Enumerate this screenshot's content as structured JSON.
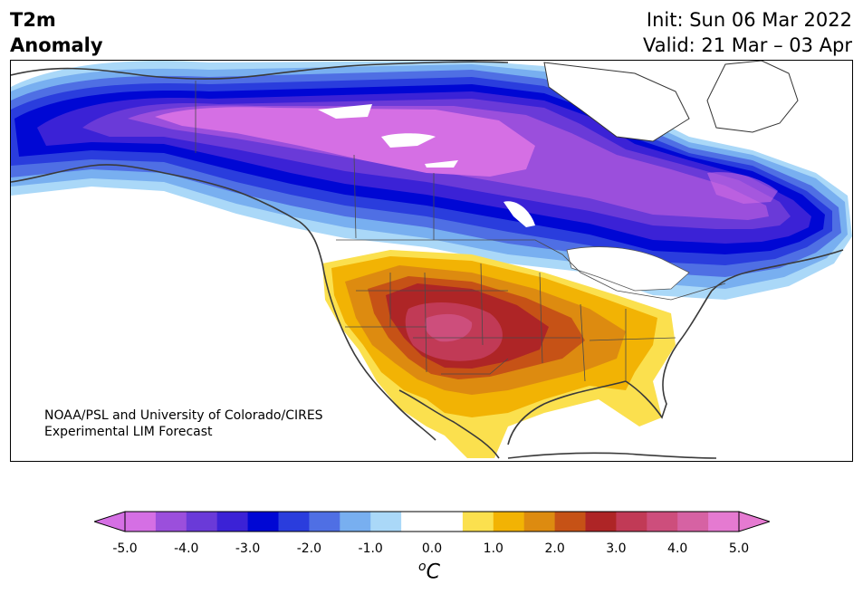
{
  "header": {
    "title_line1": "T2m",
    "title_line2": "Anomaly",
    "init": "Init: Sun 06 Mar 2022",
    "valid": "Valid: 21 Mar – 03 Apr"
  },
  "credit": {
    "line1": "NOAA/PSL and University of Colorado/CIRES",
    "line2": "Experimental LIM Forecast"
  },
  "colorbar": {
    "unit_base": "C",
    "unit_sup": "o",
    "ticks": [
      "-5.0",
      "-4.0",
      "-3.0",
      "-2.0",
      "-1.0",
      "0.0",
      "1.0",
      "2.0",
      "3.0",
      "4.0",
      "5.0"
    ],
    "colors": [
      "#d56fe4",
      "#9b4fdc",
      "#6a3ad8",
      "#3b22d6",
      "#0007d4",
      "#2a3ddd",
      "#4f6fe4",
      "#78aff0",
      "#aad8f8",
      "#ffffff",
      "#ffffff",
      "#fbe04e",
      "#f2b304",
      "#dd8b10",
      "#c65216",
      "#ae2526",
      "#c13a56",
      "#cd4e7c",
      "#d662a3",
      "#e57ad1"
    ],
    "extend_low": "#d56fe4",
    "extend_high": "#e57ad1"
  }
}
